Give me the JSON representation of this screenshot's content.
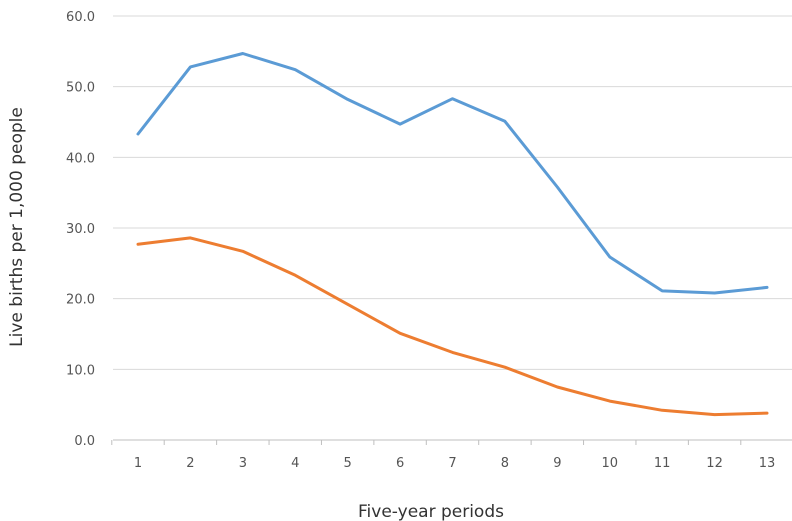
{
  "chart_data": {
    "type": "line",
    "title": "",
    "xlabel": "Five-year periods",
    "ylabel": "Live births per 1,000 people",
    "x": [
      1,
      2,
      3,
      4,
      5,
      6,
      7,
      8,
      9,
      10,
      11,
      12,
      13
    ],
    "ylim": [
      0,
      60
    ],
    "ytick_labels": [
      "0.0",
      "10.0",
      "20.0",
      "30.0",
      "40.0",
      "50.0",
      "60.0"
    ],
    "grid": true,
    "legend": "none",
    "series": [
      {
        "color": "#5b9bd5",
        "values": [
          43.3,
          52.8,
          54.7,
          52.4,
          48.2,
          44.7,
          48.3,
          45.1,
          35.8,
          25.9,
          21.1,
          20.8,
          21.6
        ]
      },
      {
        "color": "#ed7d31",
        "values": [
          27.7,
          28.6,
          26.7,
          23.3,
          19.2,
          15.1,
          12.4,
          10.3,
          7.5,
          5.5,
          4.2,
          3.6,
          3.8
        ]
      }
    ]
  }
}
